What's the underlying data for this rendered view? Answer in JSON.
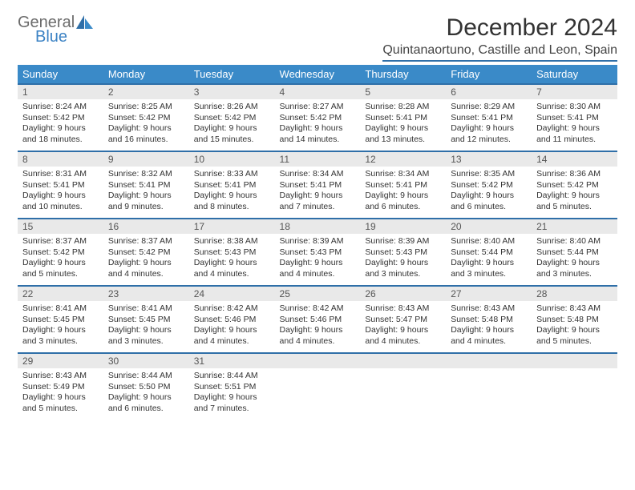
{
  "brand": {
    "word1": "General",
    "word2": "Blue"
  },
  "title": "December 2024",
  "location": "Quintanaortuno, Castille and Leon, Spain",
  "colors": {
    "accent": "#3a8ac8",
    "accent_dark": "#2f6fa8",
    "daynum_bg": "#e9e9e9",
    "text": "#333333",
    "brand_gray": "#6b6b6b",
    "brand_blue": "#3b82c4"
  },
  "weekday_headers": [
    "Sunday",
    "Monday",
    "Tuesday",
    "Wednesday",
    "Thursday",
    "Friday",
    "Saturday"
  ],
  "days": [
    {
      "n": "1",
      "sr": "8:24 AM",
      "ss": "5:42 PM",
      "dl": "9 hours and 18 minutes."
    },
    {
      "n": "2",
      "sr": "8:25 AM",
      "ss": "5:42 PM",
      "dl": "9 hours and 16 minutes."
    },
    {
      "n": "3",
      "sr": "8:26 AM",
      "ss": "5:42 PM",
      "dl": "9 hours and 15 minutes."
    },
    {
      "n": "4",
      "sr": "8:27 AM",
      "ss": "5:42 PM",
      "dl": "9 hours and 14 minutes."
    },
    {
      "n": "5",
      "sr": "8:28 AM",
      "ss": "5:41 PM",
      "dl": "9 hours and 13 minutes."
    },
    {
      "n": "6",
      "sr": "8:29 AM",
      "ss": "5:41 PM",
      "dl": "9 hours and 12 minutes."
    },
    {
      "n": "7",
      "sr": "8:30 AM",
      "ss": "5:41 PM",
      "dl": "9 hours and 11 minutes."
    },
    {
      "n": "8",
      "sr": "8:31 AM",
      "ss": "5:41 PM",
      "dl": "9 hours and 10 minutes."
    },
    {
      "n": "9",
      "sr": "8:32 AM",
      "ss": "5:41 PM",
      "dl": "9 hours and 9 minutes."
    },
    {
      "n": "10",
      "sr": "8:33 AM",
      "ss": "5:41 PM",
      "dl": "9 hours and 8 minutes."
    },
    {
      "n": "11",
      "sr": "8:34 AM",
      "ss": "5:41 PM",
      "dl": "9 hours and 7 minutes."
    },
    {
      "n": "12",
      "sr": "8:34 AM",
      "ss": "5:41 PM",
      "dl": "9 hours and 6 minutes."
    },
    {
      "n": "13",
      "sr": "8:35 AM",
      "ss": "5:42 PM",
      "dl": "9 hours and 6 minutes."
    },
    {
      "n": "14",
      "sr": "8:36 AM",
      "ss": "5:42 PM",
      "dl": "9 hours and 5 minutes."
    },
    {
      "n": "15",
      "sr": "8:37 AM",
      "ss": "5:42 PM",
      "dl": "9 hours and 5 minutes."
    },
    {
      "n": "16",
      "sr": "8:37 AM",
      "ss": "5:42 PM",
      "dl": "9 hours and 4 minutes."
    },
    {
      "n": "17",
      "sr": "8:38 AM",
      "ss": "5:43 PM",
      "dl": "9 hours and 4 minutes."
    },
    {
      "n": "18",
      "sr": "8:39 AM",
      "ss": "5:43 PM",
      "dl": "9 hours and 4 minutes."
    },
    {
      "n": "19",
      "sr": "8:39 AM",
      "ss": "5:43 PM",
      "dl": "9 hours and 3 minutes."
    },
    {
      "n": "20",
      "sr": "8:40 AM",
      "ss": "5:44 PM",
      "dl": "9 hours and 3 minutes."
    },
    {
      "n": "21",
      "sr": "8:40 AM",
      "ss": "5:44 PM",
      "dl": "9 hours and 3 minutes."
    },
    {
      "n": "22",
      "sr": "8:41 AM",
      "ss": "5:45 PM",
      "dl": "9 hours and 3 minutes."
    },
    {
      "n": "23",
      "sr": "8:41 AM",
      "ss": "5:45 PM",
      "dl": "9 hours and 3 minutes."
    },
    {
      "n": "24",
      "sr": "8:42 AM",
      "ss": "5:46 PM",
      "dl": "9 hours and 4 minutes."
    },
    {
      "n": "25",
      "sr": "8:42 AM",
      "ss": "5:46 PM",
      "dl": "9 hours and 4 minutes."
    },
    {
      "n": "26",
      "sr": "8:43 AM",
      "ss": "5:47 PM",
      "dl": "9 hours and 4 minutes."
    },
    {
      "n": "27",
      "sr": "8:43 AM",
      "ss": "5:48 PM",
      "dl": "9 hours and 4 minutes."
    },
    {
      "n": "28",
      "sr": "8:43 AM",
      "ss": "5:48 PM",
      "dl": "9 hours and 5 minutes."
    },
    {
      "n": "29",
      "sr": "8:43 AM",
      "ss": "5:49 PM",
      "dl": "9 hours and 5 minutes."
    },
    {
      "n": "30",
      "sr": "8:44 AM",
      "ss": "5:50 PM",
      "dl": "9 hours and 6 minutes."
    },
    {
      "n": "31",
      "sr": "8:44 AM",
      "ss": "5:51 PM",
      "dl": "9 hours and 7 minutes."
    }
  ],
  "labels": {
    "sunrise": "Sunrise:",
    "sunset": "Sunset:",
    "daylight": "Daylight:"
  }
}
